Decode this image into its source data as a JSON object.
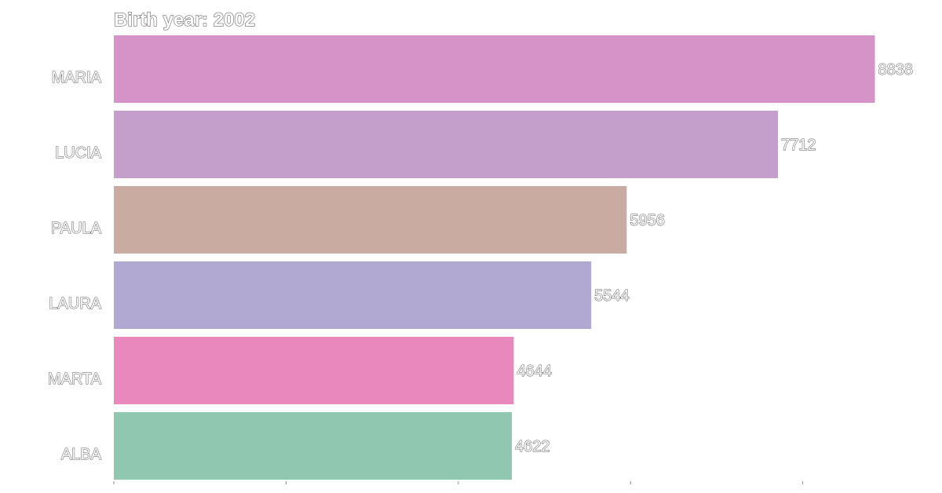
{
  "chart_data": {
    "type": "bar",
    "orientation": "horizontal",
    "title": "Birth year: 2002",
    "categories": [
      "MARIA",
      "LUCIA",
      "PAULA",
      "LAURA",
      "MARTA",
      "ALBA"
    ],
    "values": [
      8838,
      7712,
      5956,
      5544,
      4644,
      4622
    ],
    "colors": [
      "#d593c7",
      "#c49fcb",
      "#c9aba1",
      "#b2a9d2",
      "#e888bc",
      "#8fc7b0"
    ],
    "xlim": [
      0,
      10000
    ],
    "x_ticks": [
      0,
      2000,
      4000,
      6000,
      8000
    ],
    "show_tick_labels": false,
    "grid": false,
    "legend": "none"
  }
}
